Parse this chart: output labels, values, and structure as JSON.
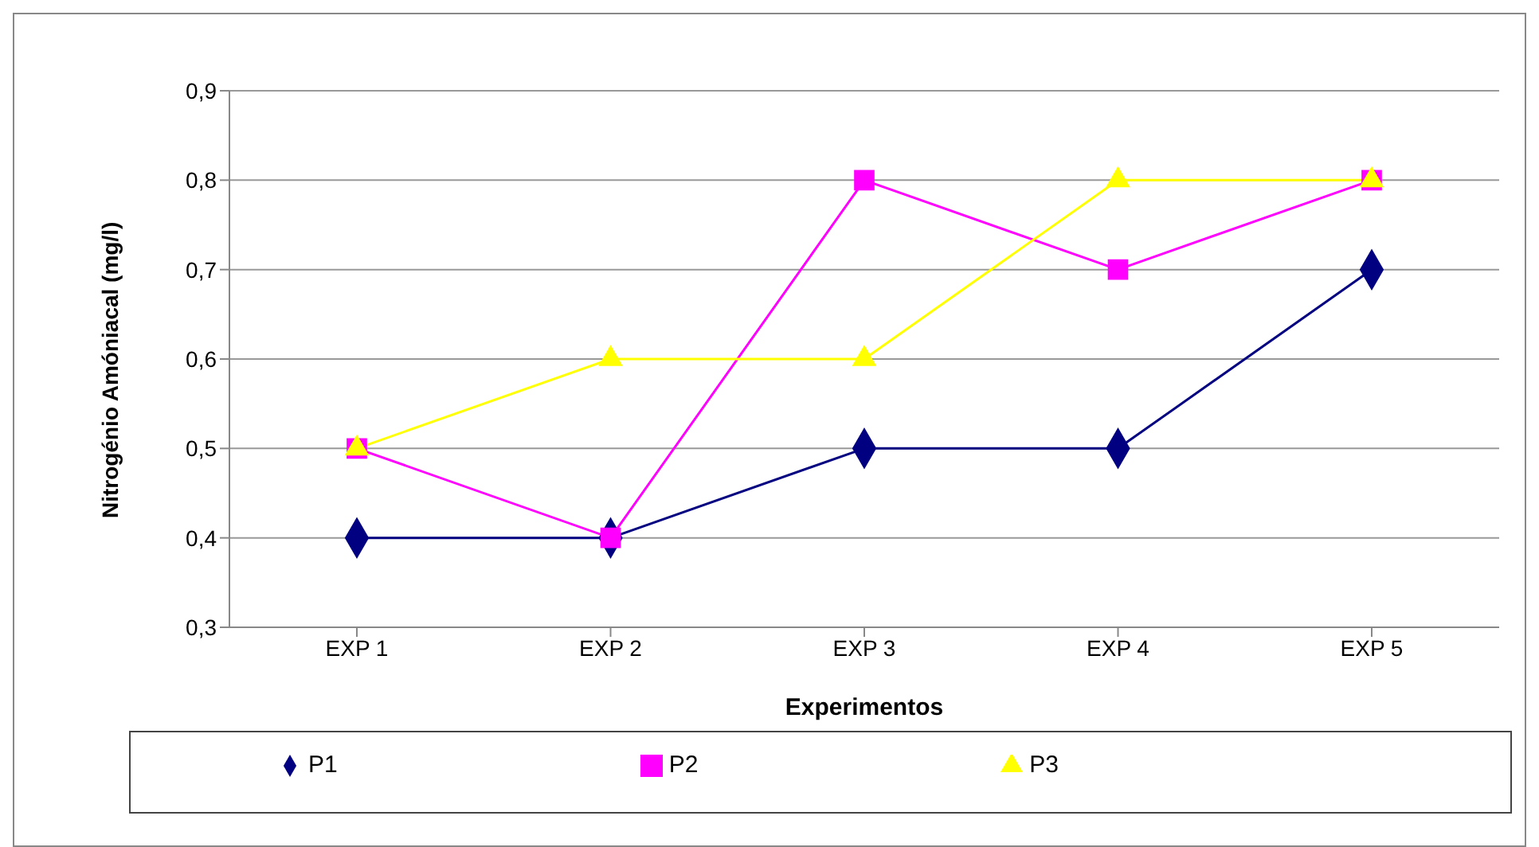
{
  "chart_data": {
    "type": "line",
    "xlabel": "Experimentos",
    "ylabel": "Nitrogénio Amóniacal (mg/l)",
    "categories": [
      "EXP 1",
      "EXP 2",
      "EXP 3",
      "EXP 4",
      "EXP 5"
    ],
    "series": [
      {
        "name": "P1",
        "color": "#000080",
        "marker": "diamond",
        "values": [
          0.4,
          0.4,
          0.5,
          0.5,
          0.7
        ]
      },
      {
        "name": "P2",
        "color": "#ff00ff",
        "marker": "square",
        "values": [
          0.5,
          0.4,
          0.8,
          0.7,
          0.8
        ]
      },
      {
        "name": "P3",
        "color": "#ffff00",
        "marker": "triangle",
        "values": [
          0.5,
          0.6,
          0.6,
          0.8,
          0.8
        ]
      }
    ],
    "ylim": [
      0.3,
      0.9
    ],
    "yticks": [
      {
        "value": 0.3,
        "label": "0,3"
      },
      {
        "value": 0.4,
        "label": "0,4"
      },
      {
        "value": 0.5,
        "label": "0,5"
      },
      {
        "value": 0.6,
        "label": "0,6"
      },
      {
        "value": 0.7,
        "label": "0,7"
      },
      {
        "value": 0.8,
        "label": "0,8"
      },
      {
        "value": 0.9,
        "label": "0,9"
      }
    ],
    "grid": "y",
    "legend": "bottom"
  }
}
